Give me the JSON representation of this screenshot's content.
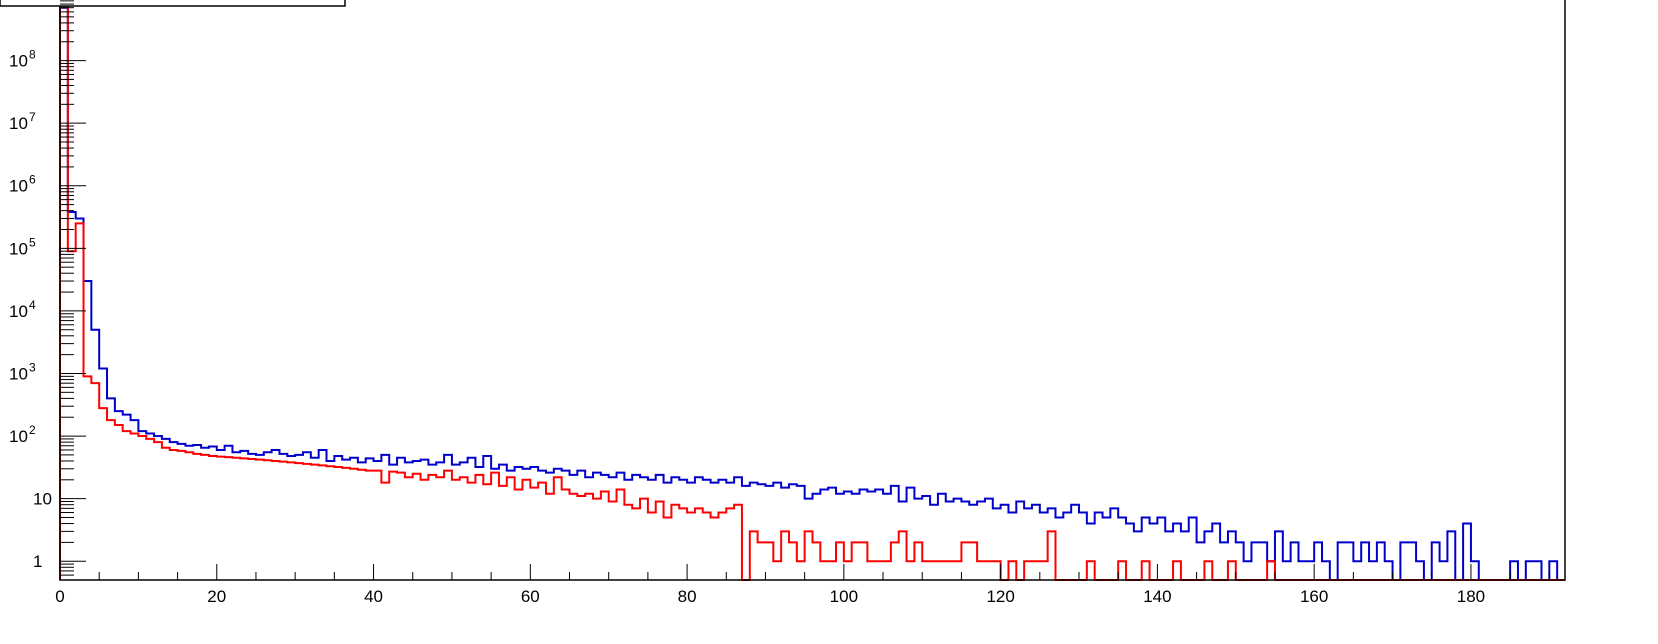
{
  "chart_data": {
    "type": "histogram",
    "title": "",
    "xlabel": "",
    "ylabel": "",
    "xlim": [
      0,
      192
    ],
    "ylim_log10": [
      -0.3,
      9.0
    ],
    "log_y": true,
    "grid": false,
    "legend": "top-left box (empty)",
    "bin_width": 1,
    "x_ticks": [
      {
        "value": 0,
        "label": "0"
      },
      {
        "value": 20,
        "label": "20"
      },
      {
        "value": 40,
        "label": "40"
      },
      {
        "value": 60,
        "label": "60"
      },
      {
        "value": 80,
        "label": "80"
      },
      {
        "value": 100,
        "label": "100"
      },
      {
        "value": 120,
        "label": "120"
      },
      {
        "value": 140,
        "label": "140"
      },
      {
        "value": 160,
        "label": "160"
      },
      {
        "value": 180,
        "label": "180"
      }
    ],
    "y_ticks": [
      {
        "exp": 0,
        "base": "1",
        "sup": ""
      },
      {
        "exp": 1,
        "base": "10",
        "sup": ""
      },
      {
        "exp": 2,
        "base": "10",
        "sup": "2"
      },
      {
        "exp": 3,
        "base": "10",
        "sup": "3"
      },
      {
        "exp": 4,
        "base": "10",
        "sup": "4"
      },
      {
        "exp": 5,
        "base": "10",
        "sup": "5"
      },
      {
        "exp": 6,
        "base": "10",
        "sup": "6"
      },
      {
        "exp": 7,
        "base": "10",
        "sup": "7"
      },
      {
        "exp": 8,
        "base": "10",
        "sup": "8"
      }
    ],
    "series": [
      {
        "color": "#0000cc",
        "values": [
          700000000.0,
          380000,
          300000,
          30000,
          5000,
          1200,
          400,
          250,
          220,
          180,
          120,
          110,
          100,
          90,
          80,
          75,
          70,
          72,
          65,
          68,
          60,
          70,
          55,
          58,
          52,
          50,
          55,
          60,
          52,
          48,
          50,
          55,
          45,
          60,
          40,
          48,
          42,
          45,
          38,
          44,
          40,
          50,
          35,
          45,
          38,
          40,
          42,
          35,
          38,
          50,
          35,
          38,
          45,
          32,
          48,
          30,
          35,
          28,
          32,
          30,
          32,
          28,
          26,
          30,
          28,
          24,
          28,
          22,
          26,
          24,
          22,
          26,
          20,
          24,
          22,
          20,
          24,
          18,
          22,
          20,
          18,
          22,
          20,
          18,
          20,
          18,
          22,
          16,
          18,
          17,
          16,
          18,
          15,
          17,
          16,
          10,
          12,
          14,
          15,
          12,
          13,
          12,
          14,
          13,
          14,
          12,
          16,
          9,
          15,
          10,
          11,
          8,
          12,
          9,
          10,
          9,
          8,
          9,
          10,
          7,
          8,
          6,
          9,
          7,
          8,
          6,
          7,
          5,
          6,
          8,
          6,
          4,
          6,
          5,
          7,
          5,
          4,
          3,
          5,
          4,
          5,
          3,
          4,
          3,
          5,
          2,
          3,
          4,
          2,
          3,
          2,
          1,
          2,
          2,
          1,
          3,
          1,
          2,
          1,
          1,
          2,
          1,
          0,
          2,
          2,
          1,
          2,
          1,
          2,
          1,
          0,
          2,
          2,
          1,
          0,
          2,
          1,
          3,
          0,
          4,
          1,
          0,
          0,
          0,
          0,
          1,
          0,
          1,
          1,
          0,
          1,
          0
        ]
      },
      {
        "color": "#ff0000",
        "values": [
          800000000.0,
          90000,
          250000,
          900,
          700,
          280,
          180,
          150,
          120,
          110,
          100,
          90,
          80,
          65,
          60,
          58,
          55,
          52,
          50,
          48,
          47,
          46,
          45,
          44,
          43,
          42,
          41,
          40,
          39,
          38,
          37,
          36,
          35,
          34,
          33,
          32,
          31,
          30,
          29,
          28,
          28,
          18,
          27,
          26,
          22,
          25,
          20,
          24,
          22,
          28,
          20,
          22,
          18,
          24,
          17,
          26,
          16,
          22,
          14,
          20,
          15,
          18,
          12,
          22,
          14,
          12,
          11,
          12,
          10,
          13,
          9,
          14,
          8,
          7,
          10,
          6,
          9,
          5,
          8,
          7,
          6,
          7,
          6,
          5,
          6,
          7,
          8,
          0,
          3,
          2,
          2,
          1,
          3,
          2,
          1,
          3,
          2,
          1,
          1,
          2,
          1,
          2,
          2,
          1,
          1,
          1,
          2,
          3,
          1,
          2,
          1,
          1,
          1,
          1,
          1,
          2,
          2,
          1,
          1,
          1,
          0,
          1,
          0,
          1,
          1,
          1,
          3,
          0,
          0,
          0,
          0,
          1,
          0,
          0,
          0,
          1,
          0,
          0,
          1,
          0,
          0,
          0,
          1,
          0,
          0,
          0,
          1,
          0,
          0,
          1,
          0,
          0,
          0,
          0,
          1,
          0,
          0,
          0,
          0,
          0,
          0,
          0,
          0,
          0,
          0,
          0,
          0,
          0,
          0,
          0,
          0,
          0,
          0,
          0,
          0,
          0,
          0,
          0,
          0,
          0,
          0,
          0,
          0,
          0,
          0,
          0,
          0,
          0,
          0,
          0,
          0,
          0
        ]
      }
    ]
  }
}
